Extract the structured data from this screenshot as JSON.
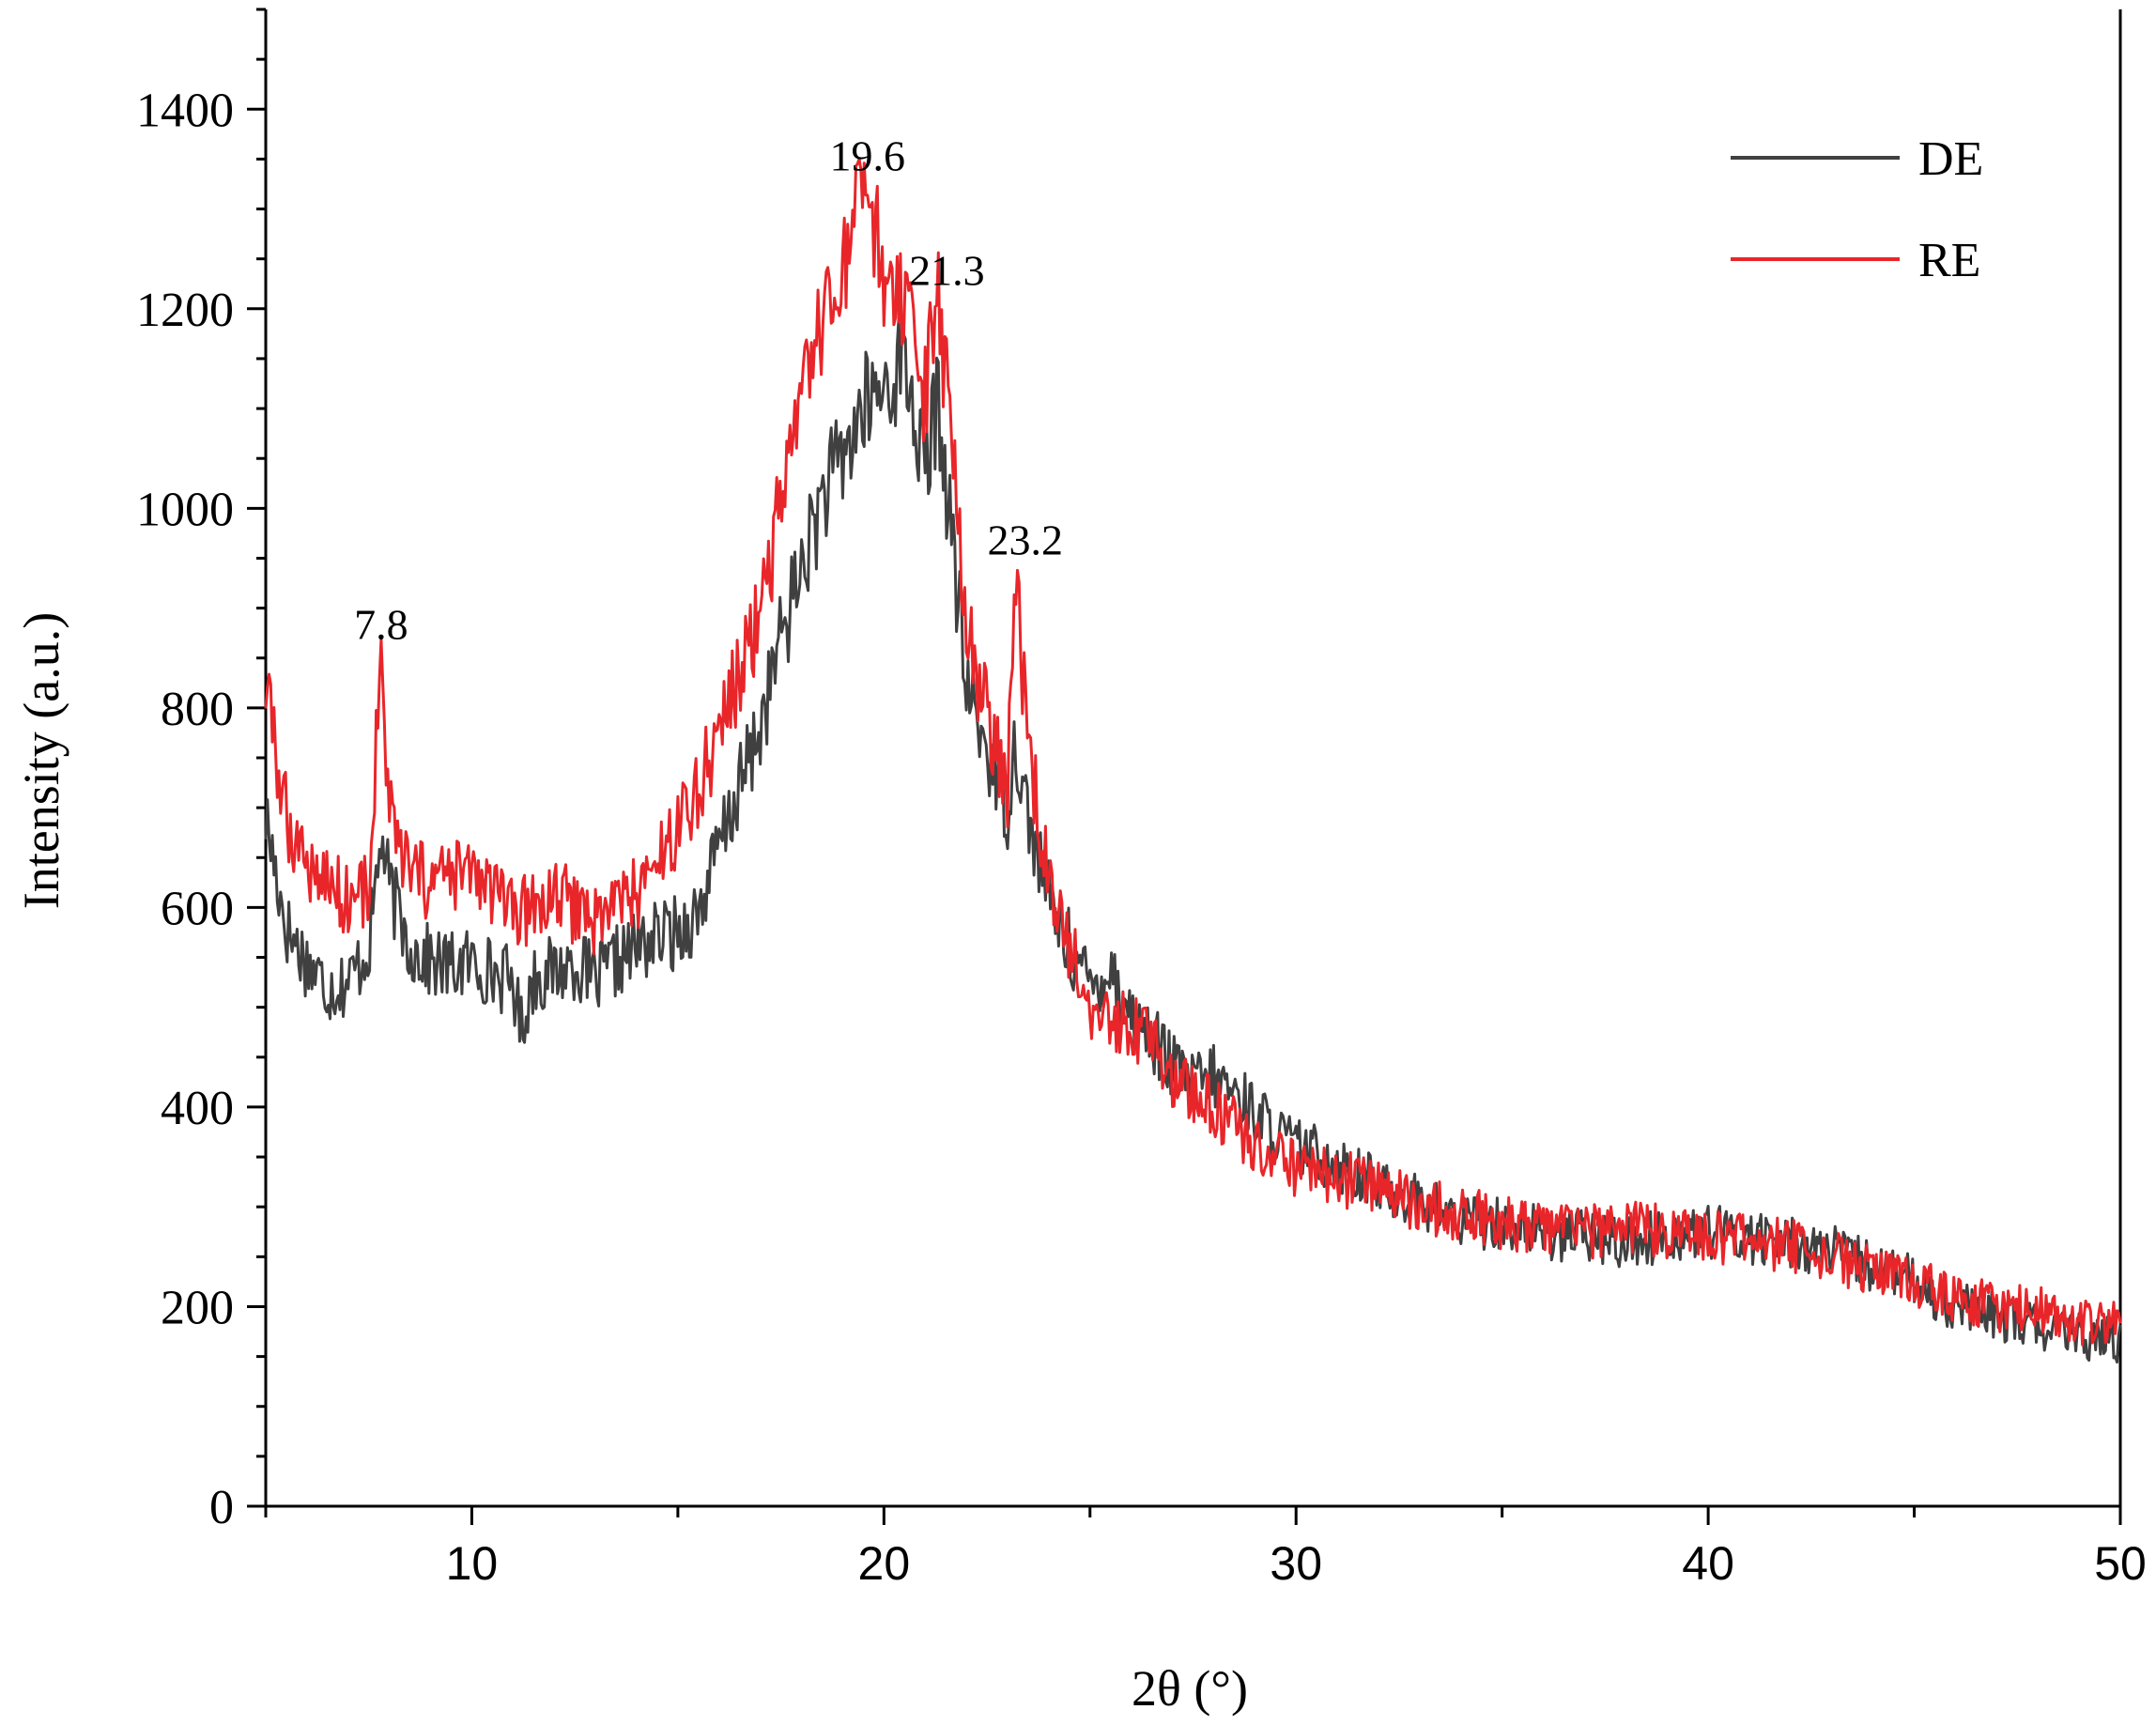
{
  "chart_data": {
    "type": "line",
    "title": "",
    "xlabel": "2θ (°)",
    "ylabel": "Intensity (a.u.)",
    "xlim": [
      5,
      50
    ],
    "ylim": [
      0,
      1500
    ],
    "x_ticks": [
      10,
      20,
      30,
      40,
      50
    ],
    "y_ticks": [
      0,
      200,
      400,
      600,
      800,
      1000,
      1200,
      1400
    ],
    "grid": false,
    "legend_position": "top-right",
    "annotations": [
      {
        "text": "7.8",
        "x": 7.8,
        "y": 850
      },
      {
        "text": "19.6",
        "x": 19.6,
        "y": 1320
      },
      {
        "text": "21.3",
        "x": 21.3,
        "y": 1205
      },
      {
        "text": "23.2",
        "x": 23.2,
        "y": 935
      }
    ],
    "series": [
      {
        "name": "DE",
        "color": "#404040",
        "points": [
          [
            5,
            690
          ],
          [
            5.5,
            580
          ],
          [
            6,
            545
          ],
          [
            6.5,
            520
          ],
          [
            7,
            525
          ],
          [
            7.5,
            560
          ],
          [
            7.8,
            670
          ],
          [
            8,
            620
          ],
          [
            8.5,
            560
          ],
          [
            9,
            545
          ],
          [
            9.5,
            540
          ],
          [
            10,
            545
          ],
          [
            10.5,
            535
          ],
          [
            11,
            525
          ],
          [
            11.2,
            480
          ],
          [
            11.5,
            530
          ],
          [
            12,
            535
          ],
          [
            12.5,
            545
          ],
          [
            13,
            525
          ],
          [
            13.5,
            545
          ],
          [
            14,
            560
          ],
          [
            14.5,
            570
          ],
          [
            15,
            575
          ],
          [
            15.5,
            595
          ],
          [
            16,
            660
          ],
          [
            16.5,
            720
          ],
          [
            17,
            780
          ],
          [
            17.5,
            870
          ],
          [
            18,
            940
          ],
          [
            18.5,
            1010
          ],
          [
            19,
            1050
          ],
          [
            19.5,
            1100
          ],
          [
            20,
            1120
          ],
          [
            20.5,
            1150
          ],
          [
            21,
            1030
          ],
          [
            21.3,
            1110
          ],
          [
            21.6,
            990
          ],
          [
            22,
            820
          ],
          [
            22.5,
            760
          ],
          [
            23,
            700
          ],
          [
            23.2,
            770
          ],
          [
            23.5,
            690
          ],
          [
            24,
            610
          ],
          [
            24.5,
            560
          ],
          [
            25,
            520
          ],
          [
            25.5,
            540
          ],
          [
            26,
            490
          ],
          [
            26.5,
            470
          ],
          [
            27,
            440
          ],
          [
            27.5,
            425
          ],
          [
            28,
            430
          ],
          [
            28.5,
            415
          ],
          [
            29,
            395
          ],
          [
            29.5,
            375
          ],
          [
            30,
            360
          ],
          [
            31,
            345
          ],
          [
            32,
            320
          ],
          [
            33,
            305
          ],
          [
            34,
            285
          ],
          [
            35,
            285
          ],
          [
            36,
            275
          ],
          [
            37,
            270
          ],
          [
            38,
            265
          ],
          [
            39,
            270
          ],
          [
            40,
            275
          ],
          [
            41,
            270
          ],
          [
            42,
            265
          ],
          [
            43,
            255
          ],
          [
            44,
            240
          ],
          [
            45,
            225
          ],
          [
            46,
            200
          ],
          [
            47,
            190
          ],
          [
            48,
            180
          ],
          [
            49,
            170
          ],
          [
            50,
            165
          ]
        ]
      },
      {
        "name": "RE",
        "color": "#e8262a",
        "points": [
          [
            5,
            820
          ],
          [
            5.5,
            690
          ],
          [
            6,
            645
          ],
          [
            6.5,
            625
          ],
          [
            7,
            610
          ],
          [
            7.5,
            620
          ],
          [
            7.8,
            850
          ],
          [
            8,
            690
          ],
          [
            8.5,
            630
          ],
          [
            9,
            625
          ],
          [
            9.5,
            630
          ],
          [
            10,
            635
          ],
          [
            10.5,
            615
          ],
          [
            11,
            590
          ],
          [
            11.5,
            600
          ],
          [
            12,
            610
          ],
          [
            12.5,
            600
          ],
          [
            13,
            590
          ],
          [
            13.5,
            605
          ],
          [
            14,
            615
          ],
          [
            14.5,
            640
          ],
          [
            15,
            680
          ],
          [
            15.5,
            720
          ],
          [
            16,
            780
          ],
          [
            16.5,
            830
          ],
          [
            17,
            900
          ],
          [
            17.5,
            1000
          ],
          [
            18,
            1100
          ],
          [
            18.5,
            1180
          ],
          [
            19,
            1235
          ],
          [
            19.6,
            1320
          ],
          [
            20,
            1230
          ],
          [
            20.5,
            1190
          ],
          [
            21,
            1110
          ],
          [
            21.3,
            1205
          ],
          [
            21.6,
            1100
          ],
          [
            22,
            880
          ],
          [
            22.5,
            790
          ],
          [
            23,
            720
          ],
          [
            23.2,
            935
          ],
          [
            23.5,
            760
          ],
          [
            24,
            620
          ],
          [
            24.5,
            560
          ],
          [
            25,
            500
          ],
          [
            25.5,
            490
          ],
          [
            26,
            480
          ],
          [
            26.5,
            470
          ],
          [
            27,
            430
          ],
          [
            27.5,
            410
          ],
          [
            28,
            400
          ],
          [
            28.5,
            380
          ],
          [
            29,
            365
          ],
          [
            29.5,
            350
          ],
          [
            30,
            335
          ],
          [
            31,
            330
          ],
          [
            32,
            320
          ],
          [
            33,
            300
          ],
          [
            34,
            295
          ],
          [
            35,
            285
          ],
          [
            36,
            280
          ],
          [
            37,
            275
          ],
          [
            38,
            280
          ],
          [
            39,
            275
          ],
          [
            40,
            270
          ],
          [
            41,
            265
          ],
          [
            42,
            262
          ],
          [
            43,
            250
          ],
          [
            44,
            235
          ],
          [
            45,
            225
          ],
          [
            46,
            210
          ],
          [
            47,
            200
          ],
          [
            48,
            195
          ],
          [
            49,
            185
          ],
          [
            50,
            180
          ]
        ]
      }
    ]
  }
}
